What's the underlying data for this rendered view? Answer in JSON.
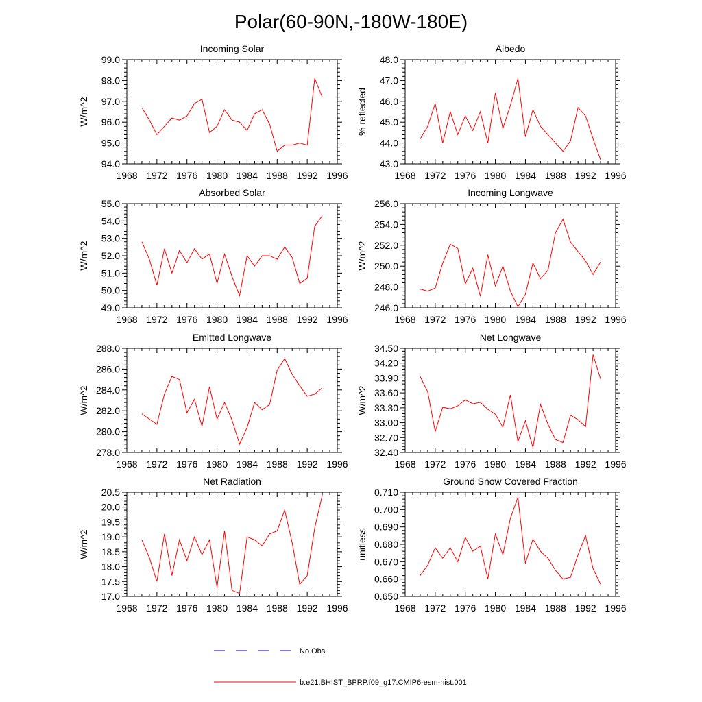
{
  "figure_title": "Polar(60-90N,-180W-180E)",
  "colors": {
    "model": "#ff0000",
    "obs": "#0000cc"
  },
  "legend": [
    {
      "label": "No Obs",
      "style": "dashed",
      "color": "#0000cc"
    },
    {
      "label": "b.e21.BHIST_BPRP.f09_g17.CMIP6-esm-hist.001",
      "style": "solid",
      "color": "#ff0000"
    }
  ],
  "chart_data": [
    {
      "type": "line",
      "title": "Incoming Solar",
      "ylabel": "W/m^2",
      "xlim": [
        1968,
        1996
      ],
      "ylim": [
        94.0,
        99.0
      ],
      "x_ticks": [
        1968,
        1972,
        1976,
        1980,
        1984,
        1988,
        1992,
        1996
      ],
      "y_ticks": [
        "94.0",
        "95.0",
        "96.0",
        "97.0",
        "98.0",
        "99.0"
      ],
      "x": [
        1970,
        1971,
        1972,
        1973,
        1974,
        1975,
        1976,
        1977,
        1978,
        1979,
        1980,
        1981,
        1982,
        1983,
        1984,
        1985,
        1986,
        1987,
        1988,
        1989,
        1990,
        1991,
        1992,
        1993,
        1994
      ],
      "series": [
        {
          "name": "b.e21.BHIST_BPRP.f09_g17.CMIP6-esm-hist.001",
          "values": [
            96.7,
            96.1,
            95.4,
            95.8,
            96.2,
            96.1,
            96.3,
            96.9,
            97.1,
            95.5,
            95.8,
            96.6,
            96.1,
            96.0,
            95.6,
            96.4,
            96.6,
            95.9,
            94.6,
            94.9,
            94.9,
            95.0,
            94.9,
            98.1,
            97.2
          ]
        }
      ]
    },
    {
      "type": "line",
      "title": "Albedo",
      "ylabel": "% reflected",
      "xlim": [
        1968,
        1996
      ],
      "ylim": [
        43.0,
        48.0
      ],
      "x_ticks": [
        1968,
        1972,
        1976,
        1980,
        1984,
        1988,
        1992,
        1996
      ],
      "y_ticks": [
        "43.0",
        "44.0",
        "45.0",
        "46.0",
        "47.0",
        "48.0"
      ],
      "x": [
        1970,
        1971,
        1972,
        1973,
        1974,
        1975,
        1976,
        1977,
        1978,
        1979,
        1980,
        1981,
        1982,
        1983,
        1984,
        1985,
        1986,
        1987,
        1988,
        1989,
        1990,
        1991,
        1992,
        1993,
        1994
      ],
      "series": [
        {
          "name": "b.e21.BHIST_BPRP.f09_g17.CMIP6-esm-hist.001",
          "values": [
            44.2,
            44.8,
            45.9,
            44.0,
            45.5,
            44.4,
            45.3,
            44.6,
            45.5,
            44.0,
            46.4,
            44.7,
            45.8,
            47.1,
            44.3,
            45.6,
            44.8,
            44.4,
            44.0,
            43.6,
            44.1,
            45.7,
            45.3,
            44.2,
            43.2
          ]
        }
      ]
    },
    {
      "type": "line",
      "title": "Absorbed Solar",
      "ylabel": "W/m^2",
      "xlim": [
        1968,
        1996
      ],
      "ylim": [
        49.0,
        55.0
      ],
      "x_ticks": [
        1968,
        1972,
        1976,
        1980,
        1984,
        1988,
        1992,
        1996
      ],
      "y_ticks": [
        "49.0",
        "50.0",
        "51.0",
        "52.0",
        "53.0",
        "54.0",
        "55.0"
      ],
      "x": [
        1970,
        1971,
        1972,
        1973,
        1974,
        1975,
        1976,
        1977,
        1978,
        1979,
        1980,
        1981,
        1982,
        1983,
        1984,
        1985,
        1986,
        1987,
        1988,
        1989,
        1990,
        1991,
        1992,
        1993,
        1994
      ],
      "series": [
        {
          "name": "b.e21.BHIST_BPRP.f09_g17.CMIP6-esm-hist.001",
          "values": [
            52.8,
            51.8,
            50.3,
            52.4,
            51.0,
            52.3,
            51.6,
            52.4,
            51.8,
            52.1,
            50.4,
            52.1,
            50.8,
            49.7,
            52.0,
            51.4,
            52.0,
            52.0,
            51.8,
            52.5,
            51.9,
            50.4,
            50.7,
            53.7,
            54.3
          ]
        }
      ]
    },
    {
      "type": "line",
      "title": "Incoming Longwave",
      "ylabel": "W/m^2",
      "xlim": [
        1968,
        1996
      ],
      "ylim": [
        246.0,
        256.0
      ],
      "x_ticks": [
        1968,
        1972,
        1976,
        1980,
        1984,
        1988,
        1992,
        1996
      ],
      "y_ticks": [
        "246.0",
        "248.0",
        "250.0",
        "252.0",
        "254.0",
        "256.0"
      ],
      "x": [
        1970,
        1971,
        1972,
        1973,
        1974,
        1975,
        1976,
        1977,
        1978,
        1979,
        1980,
        1981,
        1982,
        1983,
        1984,
        1985,
        1986,
        1987,
        1988,
        1989,
        1990,
        1991,
        1992,
        1993,
        1994
      ],
      "series": [
        {
          "name": "b.e21.BHIST_BPRP.f09_g17.CMIP6-esm-hist.001",
          "values": [
            247.8,
            247.6,
            247.9,
            250.3,
            252.1,
            251.7,
            248.3,
            249.8,
            247.1,
            251.1,
            248.1,
            250.0,
            247.6,
            246.1,
            247.3,
            250.3,
            248.8,
            249.6,
            253.2,
            254.5,
            252.3,
            251.4,
            250.5,
            249.2,
            250.4
          ]
        }
      ]
    },
    {
      "type": "line",
      "title": "Emitted Longwave",
      "ylabel": "W/m^2",
      "xlim": [
        1968,
        1996
      ],
      "ylim": [
        278.0,
        288.0
      ],
      "x_ticks": [
        1968,
        1972,
        1976,
        1980,
        1984,
        1988,
        1992,
        1996
      ],
      "y_ticks": [
        "278.0",
        "280.0",
        "282.0",
        "284.0",
        "286.0",
        "288.0"
      ],
      "x": [
        1970,
        1971,
        1972,
        1973,
        1974,
        1975,
        1976,
        1977,
        1978,
        1979,
        1980,
        1981,
        1982,
        1983,
        1984,
        1985,
        1986,
        1987,
        1988,
        1989,
        1990,
        1991,
        1992,
        1993,
        1994
      ],
      "series": [
        {
          "name": "b.e21.BHIST_BPRP.f09_g17.CMIP6-esm-hist.001",
          "values": [
            281.7,
            281.2,
            280.7,
            283.6,
            285.3,
            285.0,
            281.8,
            283.1,
            280.5,
            284.3,
            281.2,
            282.8,
            281.1,
            278.8,
            280.4,
            282.8,
            282.1,
            282.6,
            285.9,
            287.0,
            285.5,
            284.4,
            283.4,
            283.6,
            284.2
          ]
        }
      ]
    },
    {
      "type": "line",
      "title": "Net Longwave",
      "ylabel": "W/m^2",
      "xlim": [
        1968,
        1996
      ],
      "ylim": [
        32.4,
        34.5
      ],
      "x_ticks": [
        1968,
        1972,
        1976,
        1980,
        1984,
        1988,
        1992,
        1996
      ],
      "y_ticks": [
        "32.40",
        "32.70",
        "33.00",
        "33.30",
        "33.60",
        "33.90",
        "34.20",
        "34.50"
      ],
      "x": [
        1970,
        1971,
        1972,
        1973,
        1974,
        1975,
        1976,
        1977,
        1978,
        1979,
        1980,
        1981,
        1982,
        1983,
        1984,
        1985,
        1986,
        1987,
        1988,
        1989,
        1990,
        1991,
        1992,
        1993,
        1994
      ],
      "series": [
        {
          "name": "b.e21.BHIST_BPRP.f09_g17.CMIP6-esm-hist.001",
          "values": [
            33.93,
            33.62,
            32.82,
            33.31,
            33.28,
            33.34,
            33.46,
            33.38,
            33.41,
            33.27,
            33.17,
            32.91,
            33.56,
            32.62,
            33.04,
            32.5,
            33.37,
            32.97,
            32.66,
            32.6,
            33.15,
            33.06,
            32.92,
            34.37,
            33.88
          ]
        }
      ]
    },
    {
      "type": "line",
      "title": "Net Radiation",
      "ylabel": "W/m^2",
      "xlim": [
        1968,
        1996
      ],
      "ylim": [
        17.0,
        20.5
      ],
      "x_ticks": [
        1968,
        1972,
        1976,
        1980,
        1984,
        1988,
        1992,
        1996
      ],
      "y_ticks": [
        "17.0",
        "17.5",
        "18.0",
        "18.5",
        "19.0",
        "19.5",
        "20.0",
        "20.5"
      ],
      "x": [
        1970,
        1971,
        1972,
        1973,
        1974,
        1975,
        1976,
        1977,
        1978,
        1979,
        1980,
        1981,
        1982,
        1983,
        1984,
        1985,
        1986,
        1987,
        1988,
        1989,
        1990,
        1991,
        1992,
        1993,
        1994
      ],
      "series": [
        {
          "name": "b.e21.BHIST_BPRP.f09_g17.CMIP6-esm-hist.001",
          "values": [
            18.9,
            18.3,
            17.5,
            19.1,
            17.7,
            18.9,
            18.2,
            19.0,
            18.4,
            18.9,
            17.3,
            19.2,
            17.2,
            17.1,
            19.0,
            18.9,
            18.7,
            19.1,
            19.2,
            19.9,
            18.8,
            17.4,
            17.7,
            19.3,
            20.4
          ]
        }
      ]
    },
    {
      "type": "line",
      "title": "Ground Snow Covered Fraction",
      "ylabel": "unitless",
      "xlim": [
        1968,
        1996
      ],
      "ylim": [
        0.65,
        0.71
      ],
      "x_ticks": [
        1968,
        1972,
        1976,
        1980,
        1984,
        1988,
        1992,
        1996
      ],
      "y_ticks": [
        "0.650",
        "0.660",
        "0.670",
        "0.680",
        "0.690",
        "0.700",
        "0.710"
      ],
      "x": [
        1970,
        1971,
        1972,
        1973,
        1974,
        1975,
        1976,
        1977,
        1978,
        1979,
        1980,
        1981,
        1982,
        1983,
        1984,
        1985,
        1986,
        1987,
        1988,
        1989,
        1990,
        1991,
        1992,
        1993,
        1994
      ],
      "series": [
        {
          "name": "b.e21.BHIST_BPRP.f09_g17.CMIP6-esm-hist.001",
          "values": [
            0.662,
            0.668,
            0.678,
            0.672,
            0.678,
            0.67,
            0.684,
            0.676,
            0.679,
            0.66,
            0.686,
            0.674,
            0.695,
            0.707,
            0.669,
            0.683,
            0.676,
            0.672,
            0.665,
            0.66,
            0.661,
            0.674,
            0.685,
            0.666,
            0.657
          ]
        }
      ]
    }
  ]
}
